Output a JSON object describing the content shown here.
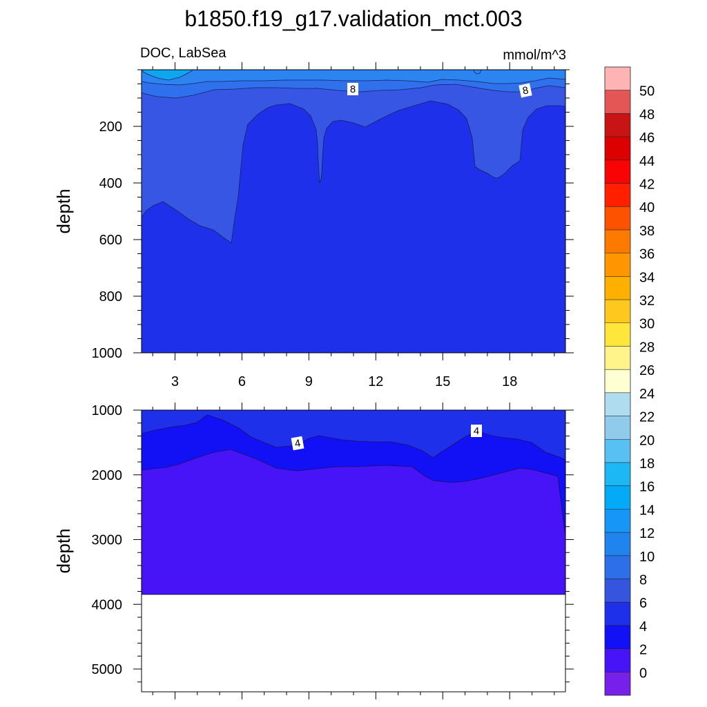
{
  "title": "b1850.f19_g17.validation_mct.003",
  "chart_data": {
    "type": "contour",
    "variable": "DOC",
    "region": "LabSea",
    "units": "mmol/m^3",
    "x_ticks": [
      3,
      6,
      9,
      12,
      15,
      18
    ],
    "x_range": [
      1.5,
      20.5
    ],
    "panels": [
      {
        "id": "upper",
        "ylabel": "depth",
        "ylim": [
          0,
          1000
        ],
        "y_ticks": [
          200,
          400,
          600,
          800,
          1000
        ],
        "line_labels": [
          "8",
          "8"
        ],
        "regions": [
          {
            "level": "4-6",
            "color": "#1f30ea",
            "note": "depth ~150-1000 interior"
          },
          {
            "level": "6-8",
            "color": "#3656e3",
            "note": "upper layer and western wedge"
          },
          {
            "level": "8-10",
            "color": "#2f70ec",
            "note": "near surface band"
          },
          {
            "level": "10-12",
            "color": "#2c84f0",
            "note": "surface band"
          },
          {
            "level": "14-16",
            "color": "#10a6ef",
            "note": "surface patch near x=2.5"
          }
        ]
      },
      {
        "id": "lower",
        "ylabel": "depth",
        "ylim": [
          1000,
          5350
        ],
        "y_ticks": [
          1000,
          2000,
          3000,
          4000,
          5000
        ],
        "bottom_depth": 3870,
        "line_labels": [
          "4",
          "4"
        ],
        "regions": [
          {
            "level": "4-6",
            "color": "#1f30ea"
          },
          {
            "level": "2-4",
            "color": "#1210f5"
          },
          {
            "level": "0-2",
            "color": "#4614f6"
          }
        ]
      }
    ],
    "colorbar": {
      "labels": [
        "50",
        "48",
        "46",
        "44",
        "42",
        "40",
        "38",
        "36",
        "34",
        "32",
        "30",
        "28",
        "26",
        "24",
        "22",
        "20",
        "18",
        "16",
        "14",
        "12",
        "10",
        "8",
        "6",
        "4",
        "2",
        "0"
      ],
      "colors": [
        "#feb4b4",
        "#e45656",
        "#c81414",
        "#dc0000",
        "#f80404",
        "#ff2000",
        "#fd5200",
        "#fd7a00",
        "#fd9600",
        "#fdb000",
        "#fec81e",
        "#fee63a",
        "#fef48a",
        "#feffd2",
        "#b0dcf0",
        "#90cbec",
        "#58c0f2",
        "#1cb8f6",
        "#04aaf8",
        "#1696f6",
        "#2084ef",
        "#2d6fe9",
        "#3655de",
        "#1f30ea",
        "#1210f5",
        "#4614f6",
        "#7620ea"
      ]
    }
  }
}
